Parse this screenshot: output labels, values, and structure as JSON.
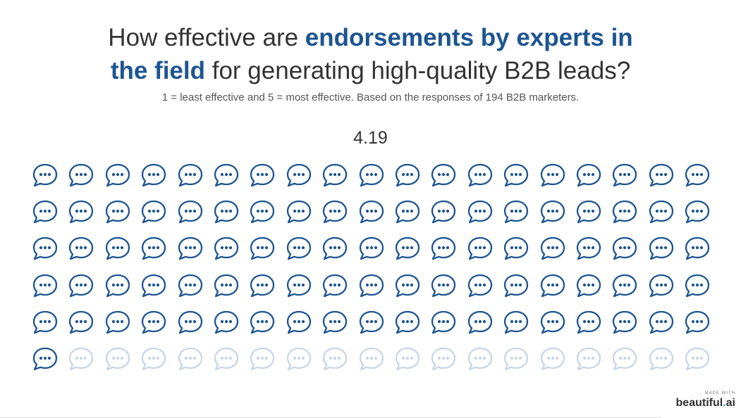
{
  "title": {
    "part1": "How effective are ",
    "highlight1": "endorsements by experts in",
    "highlight2": "the field",
    "part2": " for generating high-quality B2B leads?"
  },
  "subtitle": "1 = least effective and 5 = most effective. Based on the responses of 194 B2B marketers.",
  "badge": {
    "made_with": "MADE WITH",
    "brand_name": "beautiful",
    "brand_dot": ".",
    "brand_suffix": "ai"
  },
  "colors": {
    "accent": "#1d5591",
    "icon_filled": "#1d5591",
    "icon_faded": "#c8d6e6",
    "text": "#333333"
  },
  "chart_data": {
    "type": "pictograph",
    "icon": "chat-bubble-icon",
    "value_label": "4.19",
    "total_icons": 114,
    "filled_icons": 96,
    "grid_columns": 19,
    "grid_rows": 6
  }
}
